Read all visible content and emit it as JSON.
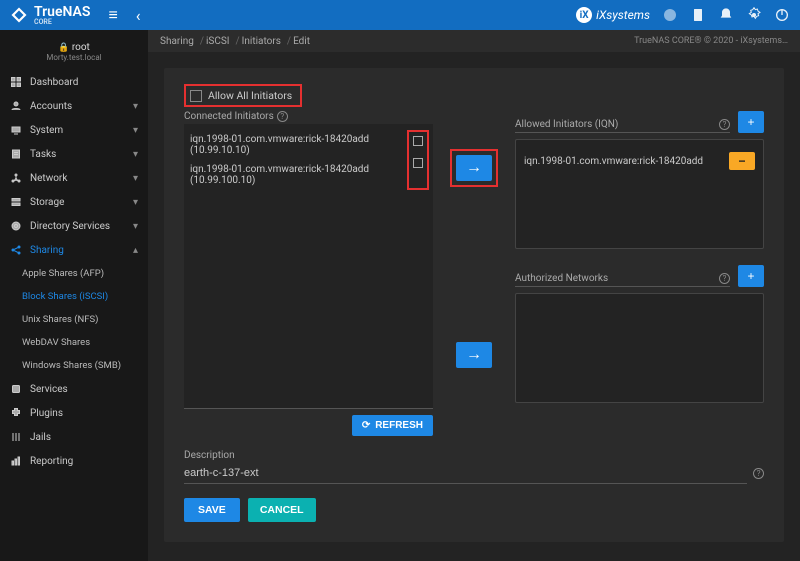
{
  "brand": {
    "name": "TrueNAS",
    "edition": "CORE"
  },
  "vendor": "iXsystems",
  "topbar_icons": [
    "status-icon",
    "clipboard-icon",
    "bell-icon",
    "gear-icon",
    "power-icon"
  ],
  "user": {
    "name": "root",
    "host": "Morty.test.local"
  },
  "nav": [
    {
      "icon": "dashboard",
      "label": "Dashboard",
      "expandable": false
    },
    {
      "icon": "accounts",
      "label": "Accounts",
      "expandable": true
    },
    {
      "icon": "system",
      "label": "System",
      "expandable": true
    },
    {
      "icon": "tasks",
      "label": "Tasks",
      "expandable": true
    },
    {
      "icon": "network",
      "label": "Network",
      "expandable": true
    },
    {
      "icon": "storage",
      "label": "Storage",
      "expandable": true
    },
    {
      "icon": "services",
      "label": "Directory Services",
      "expandable": true
    },
    {
      "icon": "sharing",
      "label": "Sharing",
      "expandable": true,
      "active": true,
      "open": true
    },
    {
      "icon": "services2",
      "label": "Services",
      "expandable": false
    },
    {
      "icon": "plugins",
      "label": "Plugins",
      "expandable": false
    },
    {
      "icon": "jails",
      "label": "Jails",
      "expandable": false
    },
    {
      "icon": "reporting",
      "label": "Reporting",
      "expandable": false
    }
  ],
  "sharing_sub": [
    {
      "label": "Apple Shares (AFP)"
    },
    {
      "label": "Block Shares (iSCSI)",
      "active": true
    },
    {
      "label": "Unix Shares (NFS)"
    },
    {
      "label": "WebDAV Shares"
    },
    {
      "label": "Windows Shares (SMB)"
    }
  ],
  "breadcrumbs": [
    "Sharing",
    "iSCSI",
    "Initiators",
    "Edit"
  ],
  "copyright": "TrueNAS CORE® © 2020 - iXsystems…",
  "allow_all_label": "Allow All Initiators",
  "connected_label": "Connected Initiators",
  "connected": [
    "iqn.1998-01.com.vmware:rick-18420add (10.99.10.10)",
    "iqn.1998-01.com.vmware:rick-18420add (10.99.100.10)"
  ],
  "allowed_label": "Allowed Initiators (IQN)",
  "allowed": [
    "iqn.1998-01.com.vmware:rick-18420add"
  ],
  "authnet_label": "Authorized Networks",
  "refresh_label": "REFRESH",
  "description_label": "Description",
  "description_value": "earth-c-137-ext",
  "save_label": "SAVE",
  "cancel_label": "CANCEL",
  "colors": {
    "primary": "#1e88e5",
    "bar": "#126dc1",
    "warn": "#f9a825",
    "highlight": "#e53030",
    "panel": "#2b2b2b",
    "bg": "#232323"
  }
}
